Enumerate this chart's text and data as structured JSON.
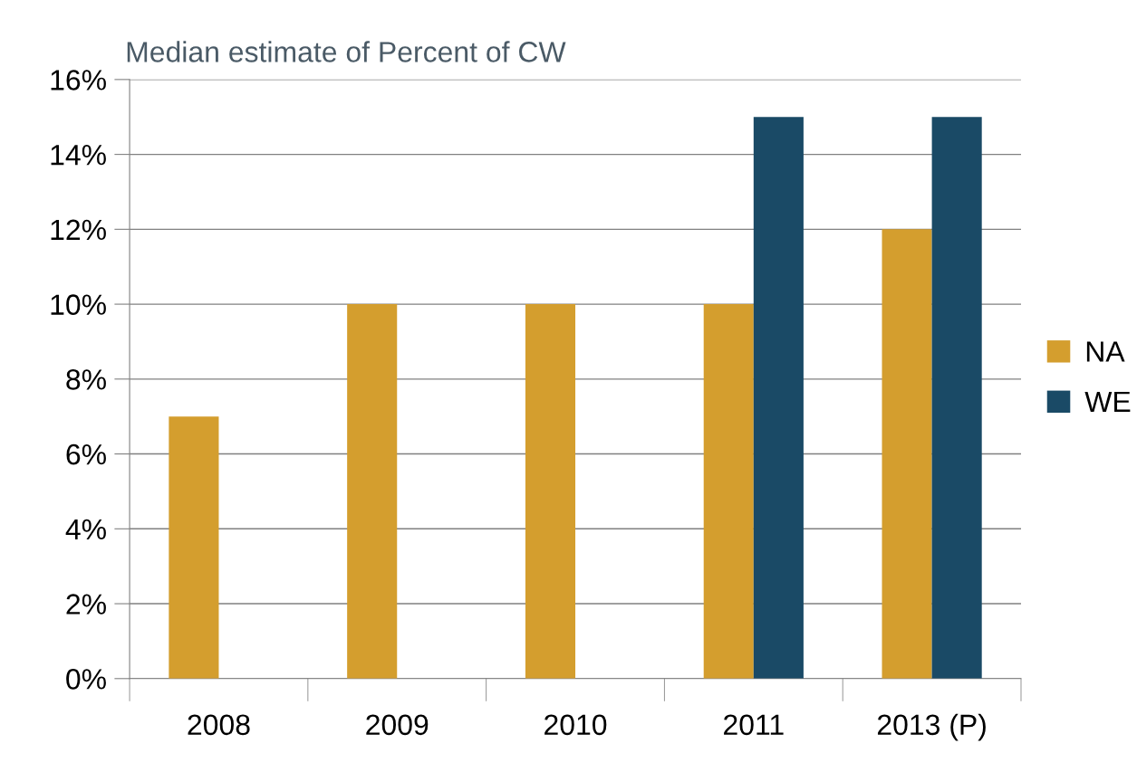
{
  "chart_data": {
    "type": "bar",
    "title": "Median estimate of Percent of CW",
    "categories": [
      "2008",
      "2009",
      "2010",
      "2011",
      "2013 (P)"
    ],
    "series": [
      {
        "name": "NA",
        "color": "#d49e2e",
        "values": [
          7,
          10,
          10,
          10,
          12
        ]
      },
      {
        "name": "WE",
        "color": "#1a4a66",
        "values": [
          null,
          null,
          null,
          15,
          15
        ]
      }
    ],
    "ylim": [
      0,
      16
    ],
    "yticks": [
      {
        "value": 0,
        "label": "0%"
      },
      {
        "value": 2,
        "label": "2%"
      },
      {
        "value": 4,
        "label": "4%"
      },
      {
        "value": 6,
        "label": "6%"
      },
      {
        "value": 8,
        "label": "8%"
      },
      {
        "value": 10,
        "label": "10%"
      },
      {
        "value": 12,
        "label": "12%"
      },
      {
        "value": 14,
        "label": "14%"
      },
      {
        "value": 16,
        "label": "16%"
      }
    ],
    "grid": "y",
    "legend": "right"
  }
}
